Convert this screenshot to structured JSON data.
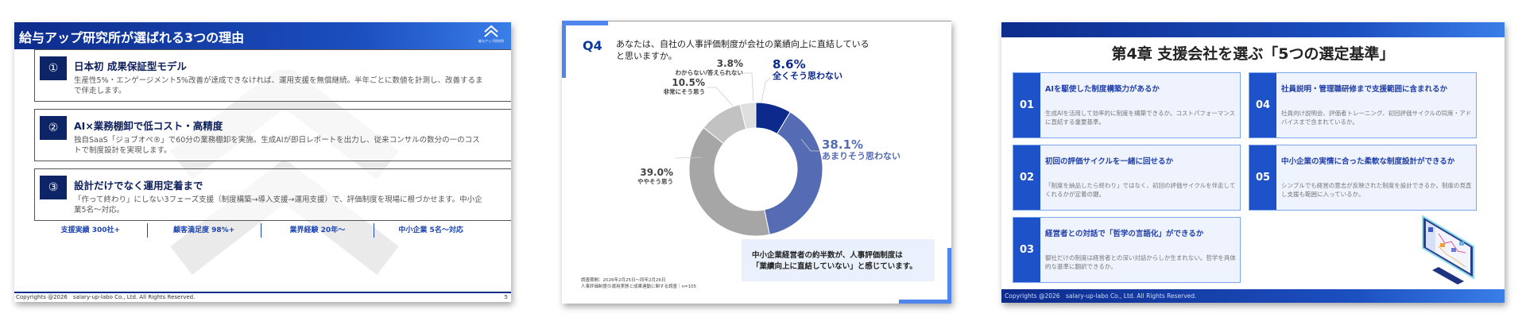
{
  "slide1": {
    "title": "給与アップ研究所が選ばれる3つの理由",
    "logo_text": "給与アップ研究所",
    "reasons": [
      {
        "num": "①",
        "title": "日本初 成果保証型モデル",
        "desc": "生産性5%・エンゲージメント5%改善が達成できなければ、運用支援を無償継続。半年ごとに数値を計測し、改善するまで伴走します。"
      },
      {
        "num": "②",
        "title": "AI×業務棚卸で低コスト・高精度",
        "desc": "独自SaaS「ジョブオペ®」で60分の業務棚卸を実施。生成AIが即日レポートを出力し、従来コンサルの数分の一のコストで制度設計を実現します。"
      },
      {
        "num": "③",
        "title": "設計だけでなく運用定着まで",
        "desc": "「作って終わり」にしない3フェーズ支援（制度構築→導入支援→運用支援）で、評価制度を現場に根づかせます。中小企業5名〜対応。"
      }
    ],
    "stats": [
      "支援実績 300社+",
      "顧客満足度 98%+",
      "業界経験 20年〜",
      "中小企業 5名〜対応"
    ],
    "footer": "Copyrights @2026　salary-up-labo Co., Ltd. All Rights Reserved.",
    "page": "5"
  },
  "slide2": {
    "q_label": "Q4",
    "question": "あなたは、自社の人事評価制度が会社の業績向上に直結していると思いますか。",
    "labels": [
      {
        "pct": "8.6%",
        "name": "全くそう思わない"
      },
      {
        "pct": "38.1%",
        "name": "あまりそう思わない"
      },
      {
        "pct": "39.0%",
        "name": "ややそう思う"
      },
      {
        "pct": "10.5%",
        "name": "非常にそう思う"
      },
      {
        "pct": "3.8%",
        "name": "わからない/答えられない"
      }
    ],
    "source_line1": "調査期間：2026年2月25日〜同年2月26日",
    "source_line2": "人事評価制度の運用実態と成果連動に関する調査｜n=105",
    "note_line1": "中小企業経営者の約半数が、人事評価制度は",
    "note_line2": "「業績向上に直結していない」と感じています。"
  },
  "chart_data": {
    "type": "pie",
    "subtype": "donut",
    "title": "あなたは、自社の人事評価制度が会社の業績向上に直結していると思いますか。",
    "categories": [
      "全くそう思わない",
      "あまりそう思わない",
      "ややそう思う",
      "非常にそう思う",
      "わからない/答えられない"
    ],
    "values": [
      8.6,
      38.1,
      39.0,
      10.5,
      3.8
    ],
    "colors": [
      "#0b2a8c",
      "#556cb4",
      "#a6a6a6",
      "#c2c2c2",
      "#dedede"
    ],
    "n": 105
  },
  "slide3": {
    "title": "第4章 支援会社を選ぶ「5つの選定基準」",
    "criteria": [
      {
        "num": "01",
        "title": "AIを駆使した制度構築力があるか",
        "desc": "生成AIを活用して効率的に制度を構築できるか。コストパフォーマンスに直結する重要基準。"
      },
      {
        "num": "02",
        "title": "初回の評価サイクルを一緒に回せるか",
        "desc": "「制度を納品したら終わり」ではなく、初回の評価サイクルを伴走してくれるかが定着の鍵。"
      },
      {
        "num": "03",
        "title": "経営者との対話で「哲学の言語化」ができるか",
        "desc": "御社だけの制度は経営者との深い対話からしか生まれない。哲学を具体的な基準に翻訳できるか。"
      },
      {
        "num": "04",
        "title": "社員説明・管理職研修まで支援範囲に含まれるか",
        "desc": "社員向け説明会、評価者トレーニング、初回評価サイクルの同席・アドバイスまで含まれているか。"
      },
      {
        "num": "05",
        "title": "中小企業の実情に合った柔軟な制度設計ができるか",
        "desc": "シンプルでも経営の意志が反映された制度を設計できるか。制度の見直し支援も範囲に入っているか。"
      }
    ],
    "footer": "Copyrights @2026　salary-up-labo Co., Ltd. All Rights Reserved."
  }
}
